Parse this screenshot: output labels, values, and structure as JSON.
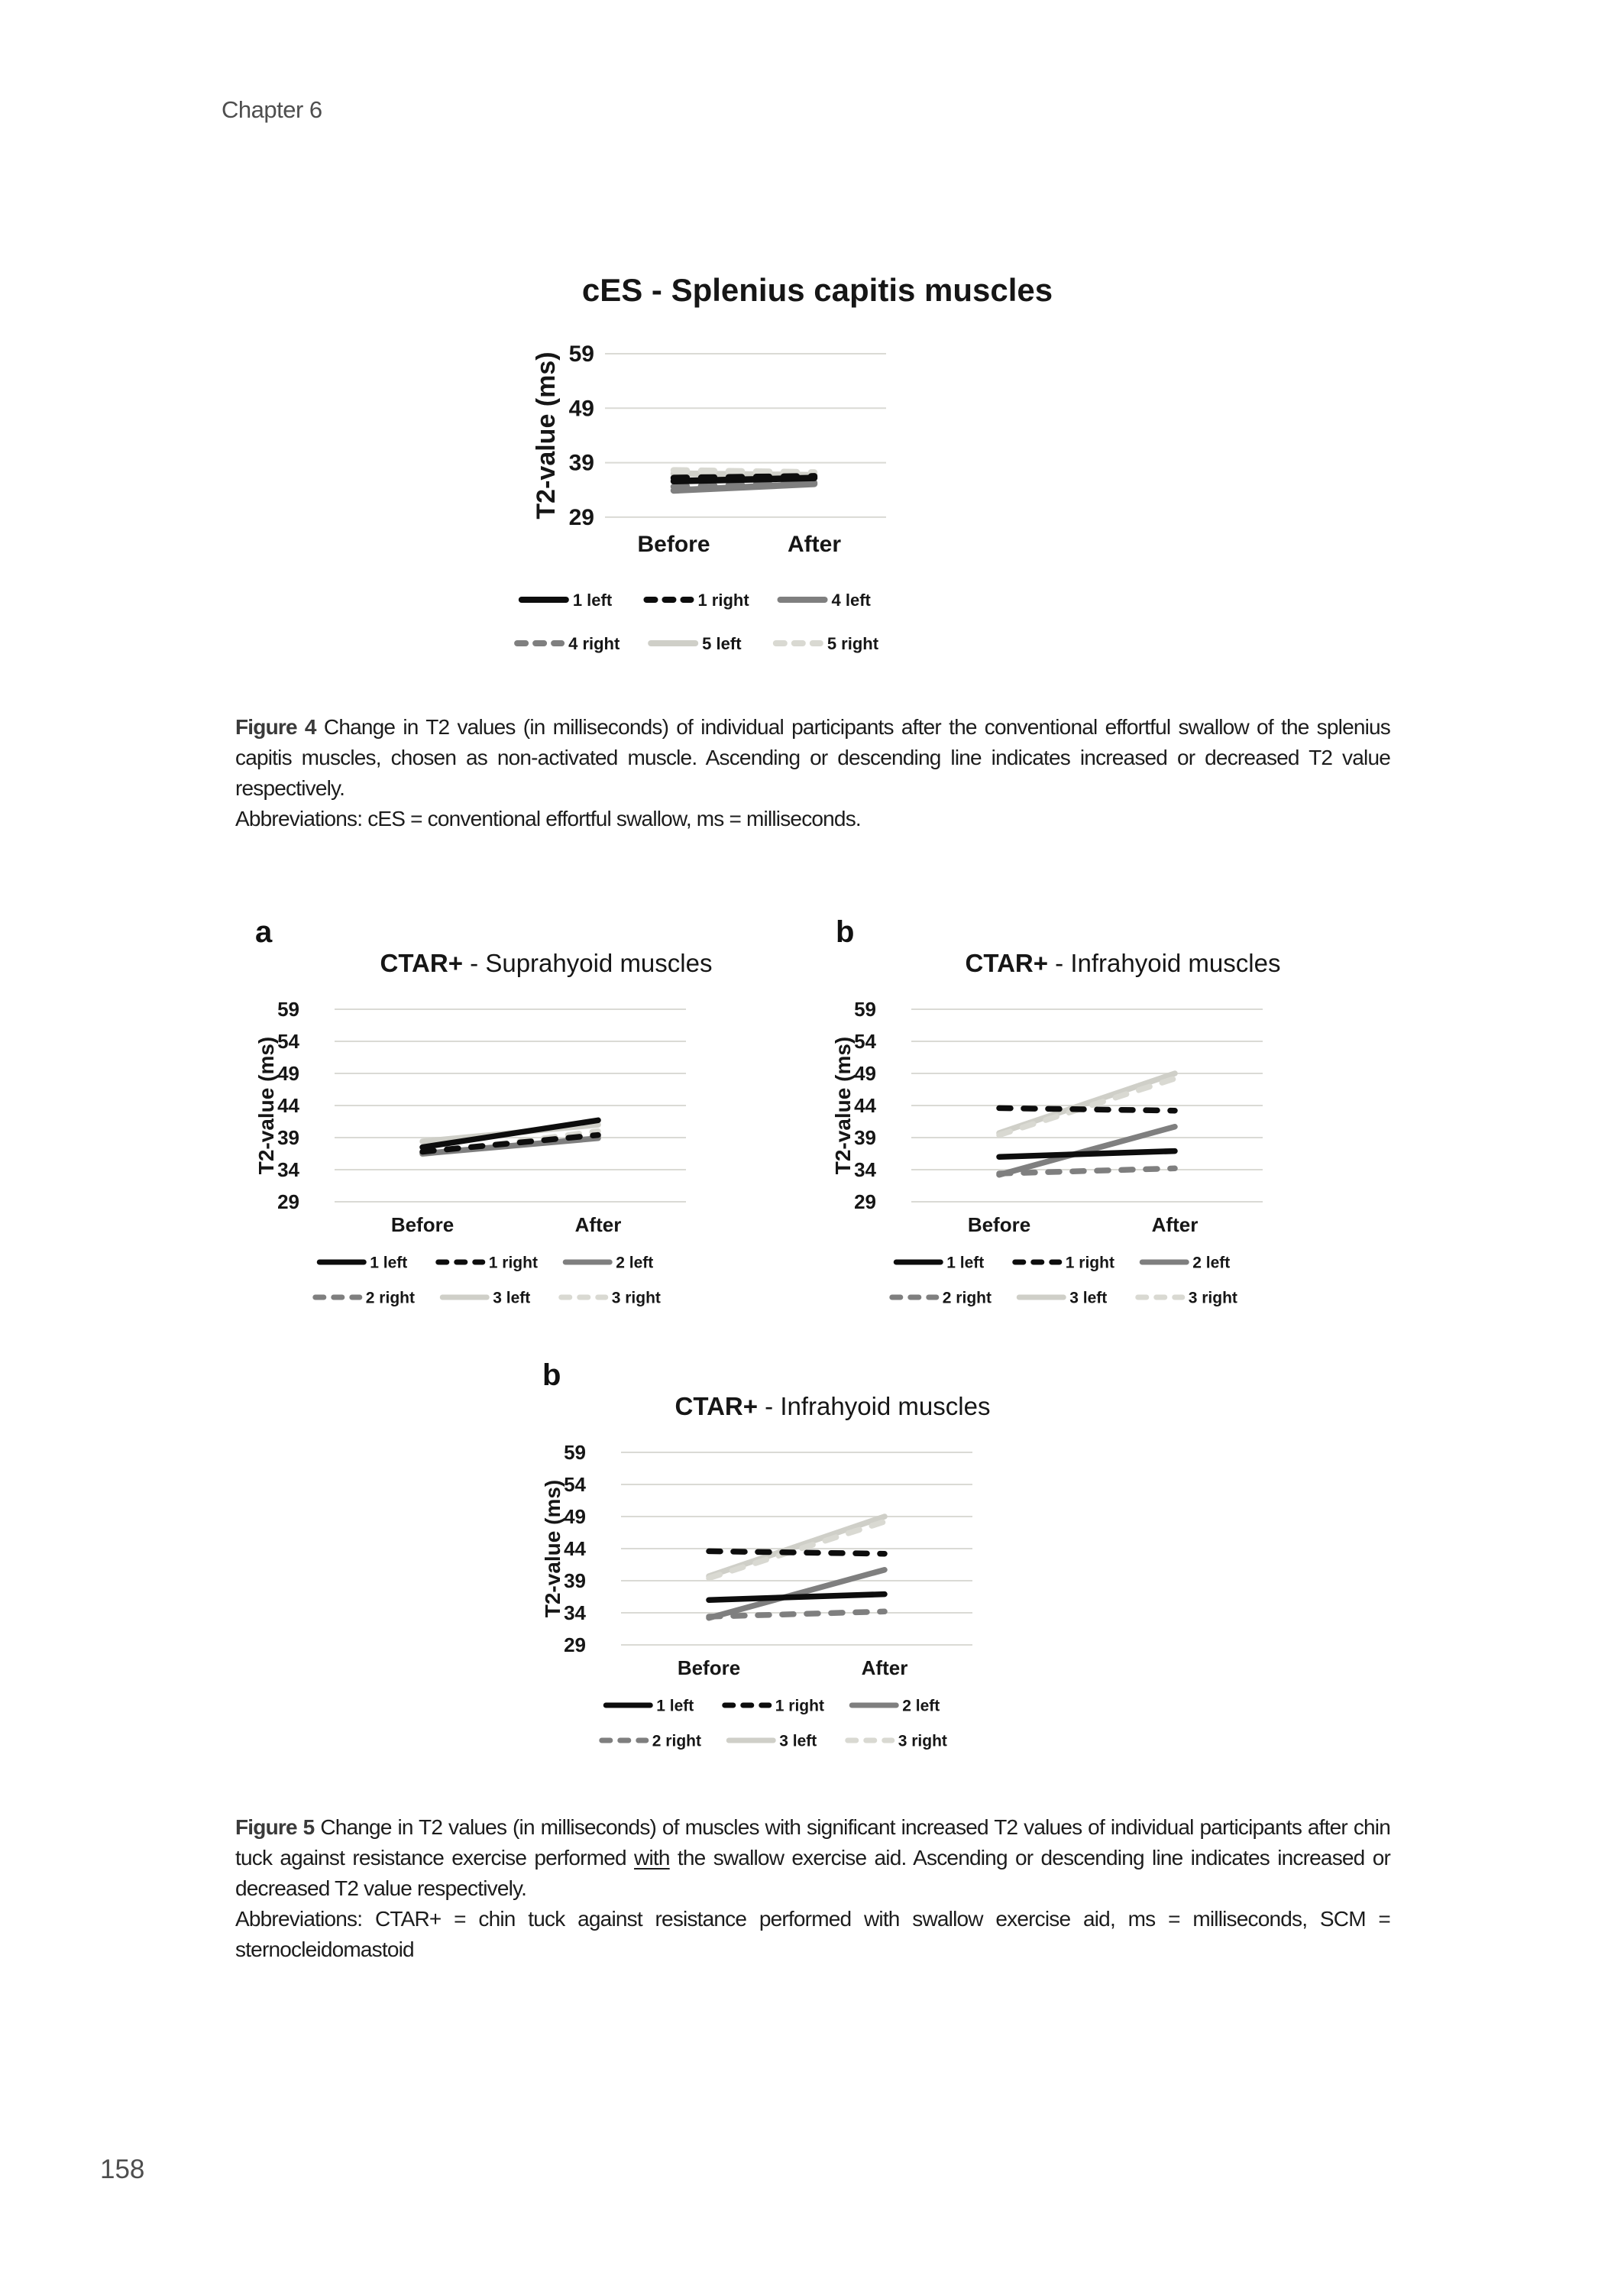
{
  "page": {
    "header": "Chapter 6",
    "number": "158"
  },
  "figure4": {
    "label": "Figure 4",
    "body": "Change in T2 values (in milliseconds) of individual participants after the conventional effortful swallow of the splenius capitis muscles, chosen as non-activated muscle. Ascending or descending line indicates increased or decreased T2 value respectively.",
    "abbreviations": "Abbreviations: cES = conventional effortful swallow, ms = milliseconds."
  },
  "figure5": {
    "label": "Figure 5",
    "body_before": "Change in T2 values (in milliseconds) of muscles with significant increased T2 values of individual participants after chin tuck against resistance exercise performed",
    "underlined": "with",
    "body_after": "the swallow exercise aid. Ascending or descending line indicates increased or decreased T2 value respectively.",
    "abbreviations": "Abbreviations: CTAR+ = chin tuck against resistance performed with swallow exercise aid, ms = milliseconds, SCM = sternocleidomastoid"
  },
  "chart_data": [
    {
      "id": "ces-splenius",
      "type": "line",
      "title_bold": "cES - Splenius capitis muscles",
      "title_rest": "",
      "ylabel": "T2-value (ms)",
      "categories": [
        "Before",
        "After"
      ],
      "yticks": [
        29,
        39,
        49,
        59
      ],
      "ylim": [
        29,
        59
      ],
      "grid": true,
      "legend_position": "bottom",
      "legend_rows": [
        [
          "1 left",
          "1 right",
          "4 left"
        ],
        [
          "4 right",
          "5 left",
          "5 right"
        ]
      ],
      "series": [
        {
          "name": "1 left",
          "values": [
            35.6,
            36.2
          ],
          "color": "#0d0d0d",
          "dash": "solid"
        },
        {
          "name": "1 right",
          "values": [
            36.2,
            36.5
          ],
          "color": "#0d0d0d",
          "dash": "dashed"
        },
        {
          "name": "4 left",
          "values": [
            33.9,
            35.1
          ],
          "color": "#7f7f7f",
          "dash": "solid"
        },
        {
          "name": "4 right",
          "values": [
            34.6,
            35.3
          ],
          "color": "#7f7f7f",
          "dash": "dashed"
        },
        {
          "name": "5 left",
          "values": [
            37.0,
            36.7
          ],
          "color": "#cfcfc8",
          "dash": "solid"
        },
        {
          "name": "5 right",
          "values": [
            37.6,
            37.2
          ],
          "color": "#d9d9d2",
          "dash": "dashed"
        }
      ]
    },
    {
      "id": "ctar-suprahyoid",
      "panel": "a",
      "type": "line",
      "title_bold": "CTAR+",
      "title_rest": " - Suprahyoid muscles",
      "ylabel": "T2-value (ms)",
      "categories": [
        "Before",
        "After"
      ],
      "yticks": [
        29,
        34,
        39,
        44,
        49,
        54,
        59
      ],
      "ylim": [
        29,
        59
      ],
      "grid": true,
      "legend_position": "bottom",
      "legend_rows": [
        [
          "1 left",
          "1 right",
          "2 left"
        ],
        [
          "2 right",
          "3 left",
          "3 right"
        ]
      ],
      "series": [
        {
          "name": "1 left",
          "values": [
            37.5,
            41.7
          ],
          "color": "#0d0d0d",
          "dash": "solid"
        },
        {
          "name": "1 right",
          "values": [
            36.8,
            39.4
          ],
          "color": "#0d0d0d",
          "dash": "dashed"
        },
        {
          "name": "2 left",
          "values": [
            36.5,
            38.9
          ],
          "color": "#7f7f7f",
          "dash": "solid"
        },
        {
          "name": "2 right",
          "values": [
            36.6,
            39.2
          ],
          "color": "#7f7f7f",
          "dash": "dashed"
        },
        {
          "name": "3 left",
          "values": [
            38.4,
            41.0
          ],
          "color": "#cfcfc8",
          "dash": "solid"
        },
        {
          "name": "3 right",
          "values": [
            36.4,
            40.0
          ],
          "color": "#d9d9d2",
          "dash": "dashed"
        }
      ]
    },
    {
      "id": "ctar-infrahyoid",
      "panel": "b",
      "type": "line",
      "title_bold": "CTAR+",
      "title_rest": " - Infrahyoid muscles",
      "ylabel": "T2-value (ms)",
      "categories": [
        "Before",
        "After"
      ],
      "yticks": [
        29,
        34,
        39,
        44,
        49,
        54,
        59
      ],
      "ylim": [
        29,
        59
      ],
      "grid": true,
      "legend_position": "bottom",
      "legend_rows": [
        [
          "1 left",
          "1 right",
          "2 left"
        ],
        [
          "2 right",
          "3 left",
          "3 right"
        ]
      ],
      "series": [
        {
          "name": "1 left",
          "values": [
            36.0,
            36.9
          ],
          "color": "#0d0d0d",
          "dash": "solid"
        },
        {
          "name": "1 right",
          "values": [
            43.6,
            43.2
          ],
          "color": "#0d0d0d",
          "dash": "dashed"
        },
        {
          "name": "2 left",
          "values": [
            33.2,
            40.7
          ],
          "color": "#7f7f7f",
          "dash": "solid"
        },
        {
          "name": "2 right",
          "values": [
            33.4,
            34.2
          ],
          "color": "#7f7f7f",
          "dash": "dashed"
        },
        {
          "name": "3 left",
          "values": [
            39.7,
            49.0
          ],
          "color": "#cfcfc8",
          "dash": "solid"
        },
        {
          "name": "3 right",
          "values": [
            39.4,
            48.2
          ],
          "color": "#d9d9d2",
          "dash": "dashed"
        }
      ]
    }
  ]
}
